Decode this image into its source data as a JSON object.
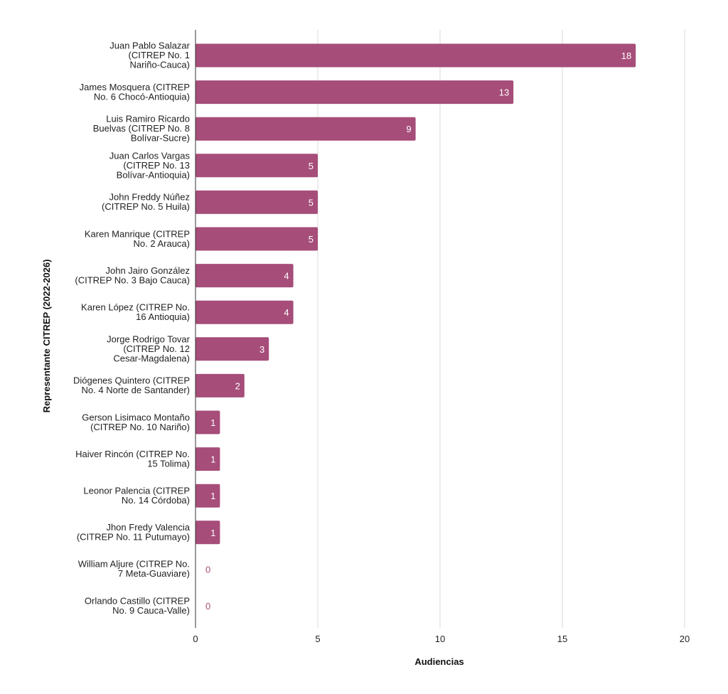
{
  "chart_data": {
    "type": "bar",
    "orientation": "horizontal",
    "xlabel": "Audiencias",
    "ylabel": "Representante CITREP (2022-2026)",
    "xlim": [
      0,
      20
    ],
    "xticks": [
      "0",
      "5",
      "10",
      "15",
      "20"
    ],
    "grid": "vertical",
    "bar_color": "#a64d79",
    "zero_label_color": "#a64d79",
    "inside_label_color": "#ffffff",
    "categories": [
      [
        "Juan Pablo Salazar",
        "(CITREP No. 1",
        "Nariño-Cauca)"
      ],
      [
        "James Mosquera (CITREP",
        "No. 6 Chocó-Antioquia)"
      ],
      [
        "Luis Ramiro Ricardo",
        "Buelvas (CITREP No. 8",
        "Bolívar-Sucre)"
      ],
      [
        "Juan Carlos Vargas",
        "(CITREP No. 13",
        "Bolívar-Antioquia)"
      ],
      [
        "John Freddy Núñez",
        "(CITREP No. 5 Huila)"
      ],
      [
        "Karen Manrique (CITREP",
        "No. 2 Arauca)"
      ],
      [
        "John Jairo González",
        "(CITREP No. 3 Bajo Cauca)"
      ],
      [
        "Karen López (CITREP No.",
        "16 Antioquia)"
      ],
      [
        "Jorge Rodrigo Tovar",
        "(CITREP No. 12",
        "Cesar-Magdalena)"
      ],
      [
        "Diógenes Quintero (CITREP",
        "No. 4 Norte de Santander)"
      ],
      [
        "Gerson Lisimaco Montaño",
        "(CITREP No. 10 Nariño)"
      ],
      [
        "Haiver Rincón (CITREP No.",
        "15 Tolima)"
      ],
      [
        "Leonor Palencia (CITREP",
        "No. 14 Córdoba)"
      ],
      [
        "Jhon Fredy Valencia",
        "(CITREP No. 11 Putumayo)"
      ],
      [
        "William Aljure (CITREP No.",
        "7 Meta-Guaviare)"
      ],
      [
        "Orlando Castillo (CITREP",
        "No. 9 Cauca-Valle)"
      ]
    ],
    "values": [
      18,
      13,
      9,
      5,
      5,
      5,
      4,
      4,
      3,
      2,
      1,
      1,
      1,
      1,
      0,
      0
    ]
  }
}
